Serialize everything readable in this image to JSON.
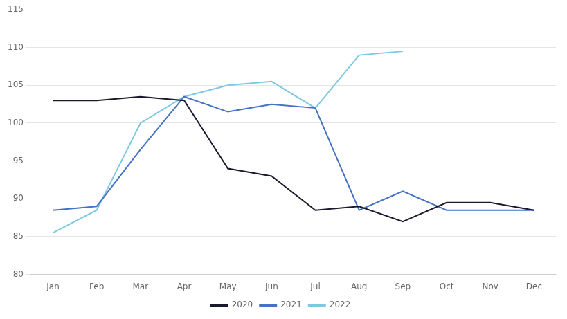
{
  "chart_data": {
    "type": "line",
    "categories": [
      "Jan",
      "Feb",
      "Mar",
      "Apr",
      "May",
      "Jun",
      "Jul",
      "Aug",
      "Sep",
      "Oct",
      "Nov",
      "Dec"
    ],
    "series": [
      {
        "name": "2020",
        "color": "#1a1a2e",
        "values": [
          103.0,
          103.0,
          103.5,
          103.0,
          94.0,
          93.0,
          88.5,
          89.0,
          87.0,
          89.5,
          89.5,
          88.5
        ]
      },
      {
        "name": "2021",
        "color": "#4472c4",
        "values": [
          88.5,
          89.0,
          96.5,
          103.5,
          101.5,
          102.5,
          102.0,
          88.5,
          91.0,
          88.5,
          88.5,
          88.5
        ]
      },
      {
        "name": "2022",
        "color": "#7ec8e3",
        "values": [
          85.5,
          88.5,
          100.0,
          103.5,
          105.0,
          105.5,
          102.0,
          109.0,
          109.5,
          null,
          null,
          null
        ]
      }
    ],
    "ylim": [
      80,
      115
    ],
    "yticks": [
      80,
      85,
      90,
      95,
      100,
      105,
      110,
      115
    ],
    "grid": true,
    "legend": "bottom"
  }
}
